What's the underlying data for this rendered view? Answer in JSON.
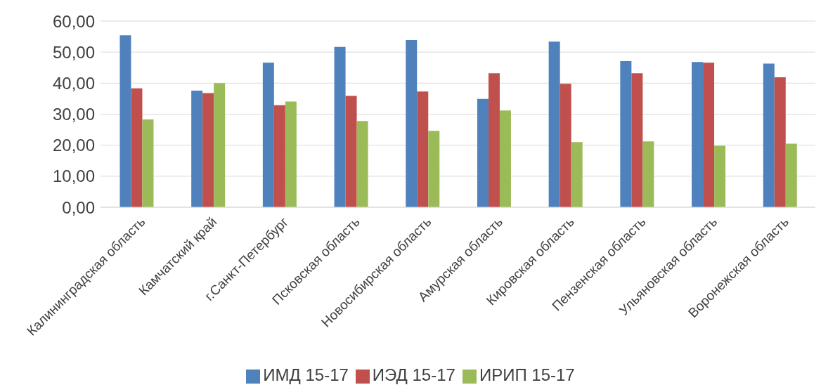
{
  "chart_data": {
    "type": "bar",
    "categories": [
      "Калининградская область",
      "Камчатский край",
      "г.Санкт-Петербург",
      "Псковская область",
      "Новосибирская область",
      "Амурская область",
      "Кировская область",
      "Пензенская область",
      "Ульяновская область",
      "Воронежская область"
    ],
    "series": [
      {
        "name": "ИМД 15-17",
        "color": "#4f81bd",
        "values": [
          55.4,
          37.6,
          46.6,
          51.7,
          53.9,
          34.9,
          53.4,
          47.1,
          46.8,
          46.3
        ]
      },
      {
        "name": "ИЭД 15-17",
        "color": "#c0504d",
        "values": [
          38.3,
          36.8,
          32.9,
          35.9,
          37.3,
          43.2,
          39.8,
          43.2,
          46.6,
          41.9
        ]
      },
      {
        "name": "ИРИП 15-17",
        "color": "#9bbb59",
        "values": [
          28.3,
          40.0,
          34.1,
          27.8,
          24.6,
          31.2,
          21.0,
          21.2,
          19.8,
          20.5
        ]
      }
    ],
    "ylim": [
      0,
      60
    ],
    "yticks": [
      {
        "value": 0,
        "label": "0,00"
      },
      {
        "value": 10,
        "label": "10,00"
      },
      {
        "value": 20,
        "label": "20,00"
      },
      {
        "value": 30,
        "label": "30,00"
      },
      {
        "value": 40,
        "label": "40,00"
      },
      {
        "value": 50,
        "label": "50,00"
      },
      {
        "value": 60,
        "label": "60,00"
      }
    ],
    "grid": "y",
    "legend": "bottom"
  }
}
